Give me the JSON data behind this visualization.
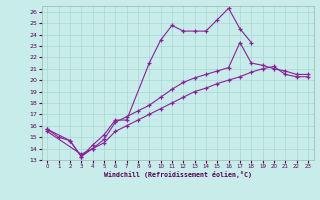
{
  "xlabel": "Windchill (Refroidissement éolien,°C)",
  "bg_color": "#c8ecea",
  "grid_color": "#a8d8d4",
  "line_color": "#882299",
  "ylim": [
    13,
    26.5
  ],
  "xlim": [
    -0.5,
    23.5
  ],
  "yticks": [
    13,
    14,
    15,
    16,
    17,
    18,
    19,
    20,
    21,
    22,
    23,
    24,
    25,
    26
  ],
  "xticks": [
    0,
    1,
    2,
    3,
    4,
    5,
    6,
    7,
    8,
    9,
    10,
    11,
    12,
    13,
    14,
    15,
    16,
    17,
    18,
    19,
    20,
    21,
    22,
    23
  ],
  "line1_x": [
    0,
    1,
    2,
    3,
    4,
    5,
    6,
    7,
    9,
    10,
    11,
    12,
    13,
    14,
    15,
    16,
    17,
    18
  ],
  "line1_y": [
    15.7,
    15.0,
    14.7,
    13.3,
    14.3,
    15.2,
    16.5,
    16.5,
    21.5,
    23.5,
    24.8,
    24.3,
    24.3,
    24.3,
    25.3,
    26.3,
    24.5,
    23.3
  ],
  "line2_x": [
    0,
    2,
    3,
    4,
    5,
    6,
    7,
    8,
    9,
    10,
    11,
    12,
    13,
    14,
    15,
    16,
    17,
    18,
    19,
    20,
    21,
    22,
    23
  ],
  "line2_y": [
    15.7,
    14.7,
    13.3,
    14.0,
    14.8,
    16.3,
    16.8,
    17.3,
    17.8,
    18.5,
    19.2,
    19.8,
    20.2,
    20.5,
    20.8,
    21.1,
    23.3,
    21.5,
    21.3,
    21.0,
    20.8,
    20.5,
    20.5
  ],
  "line3_x": [
    0,
    3,
    4,
    5,
    6,
    7,
    8,
    9,
    10,
    11,
    12,
    13,
    14,
    15,
    16,
    17,
    18,
    19,
    20,
    21,
    22,
    23
  ],
  "line3_y": [
    15.5,
    13.5,
    14.0,
    14.5,
    15.5,
    16.0,
    16.5,
    17.0,
    17.5,
    18.0,
    18.5,
    19.0,
    19.3,
    19.7,
    20.0,
    20.3,
    20.7,
    21.0,
    21.2,
    20.5,
    20.3,
    20.3
  ]
}
